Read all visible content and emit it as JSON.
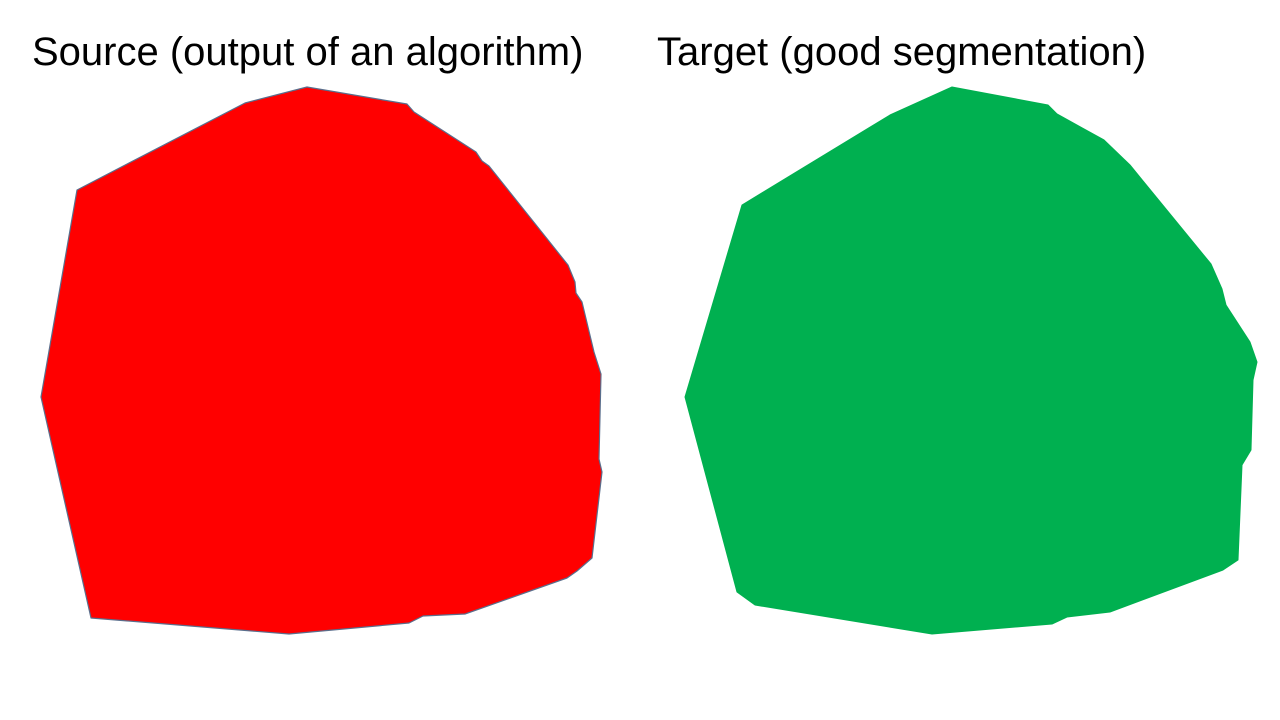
{
  "panels": {
    "source": {
      "title": "Source (output of an algorithm)",
      "fill_color": "#ff0000",
      "stroke_color": "#5a6e8c"
    },
    "target": {
      "title": "Target (good segmentation)",
      "fill_color": "#00b050",
      "stroke_color": "#00b050"
    }
  }
}
